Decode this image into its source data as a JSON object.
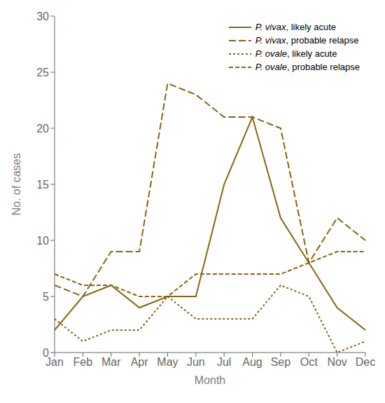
{
  "chart_data": {
    "type": "line",
    "categories": [
      "Jan",
      "Feb",
      "Mar",
      "Apr",
      "May",
      "Jun",
      "Jul",
      "Aug",
      "Sep",
      "Oct",
      "Nov",
      "Dec"
    ],
    "series": [
      {
        "name": "P. vivax, likely acute",
        "color": "#8B6410",
        "line_style": "solid",
        "values": [
          2,
          5,
          6,
          4,
          5,
          5,
          15,
          21,
          12,
          8,
          4,
          2
        ]
      },
      {
        "name": "P. vivax, probable relapse",
        "color": "#8B6410",
        "line_style": "long_dash",
        "values": [
          6,
          5,
          9,
          9,
          24,
          23,
          21,
          21,
          20,
          8,
          12,
          10
        ]
      },
      {
        "name": "P. ovale, likely acute",
        "color": "#8B6410",
        "line_style": "dotted",
        "values": [
          3,
          1,
          2,
          2,
          5,
          3,
          3,
          3,
          6,
          5,
          0,
          1
        ]
      },
      {
        "name": "P. ovale, probable relapse",
        "color": "#8B6410",
        "line_style": "dashed",
        "values": [
          7,
          6,
          6,
          5,
          5,
          7,
          7,
          7,
          7,
          8,
          9,
          9
        ]
      }
    ],
    "xlabel": "Month",
    "ylabel": "No. of cases",
    "ylim": [
      0,
      30
    ],
    "yticks": [
      0,
      5,
      10,
      15,
      20,
      25,
      30
    ],
    "grid": false,
    "legend": "upper right"
  }
}
